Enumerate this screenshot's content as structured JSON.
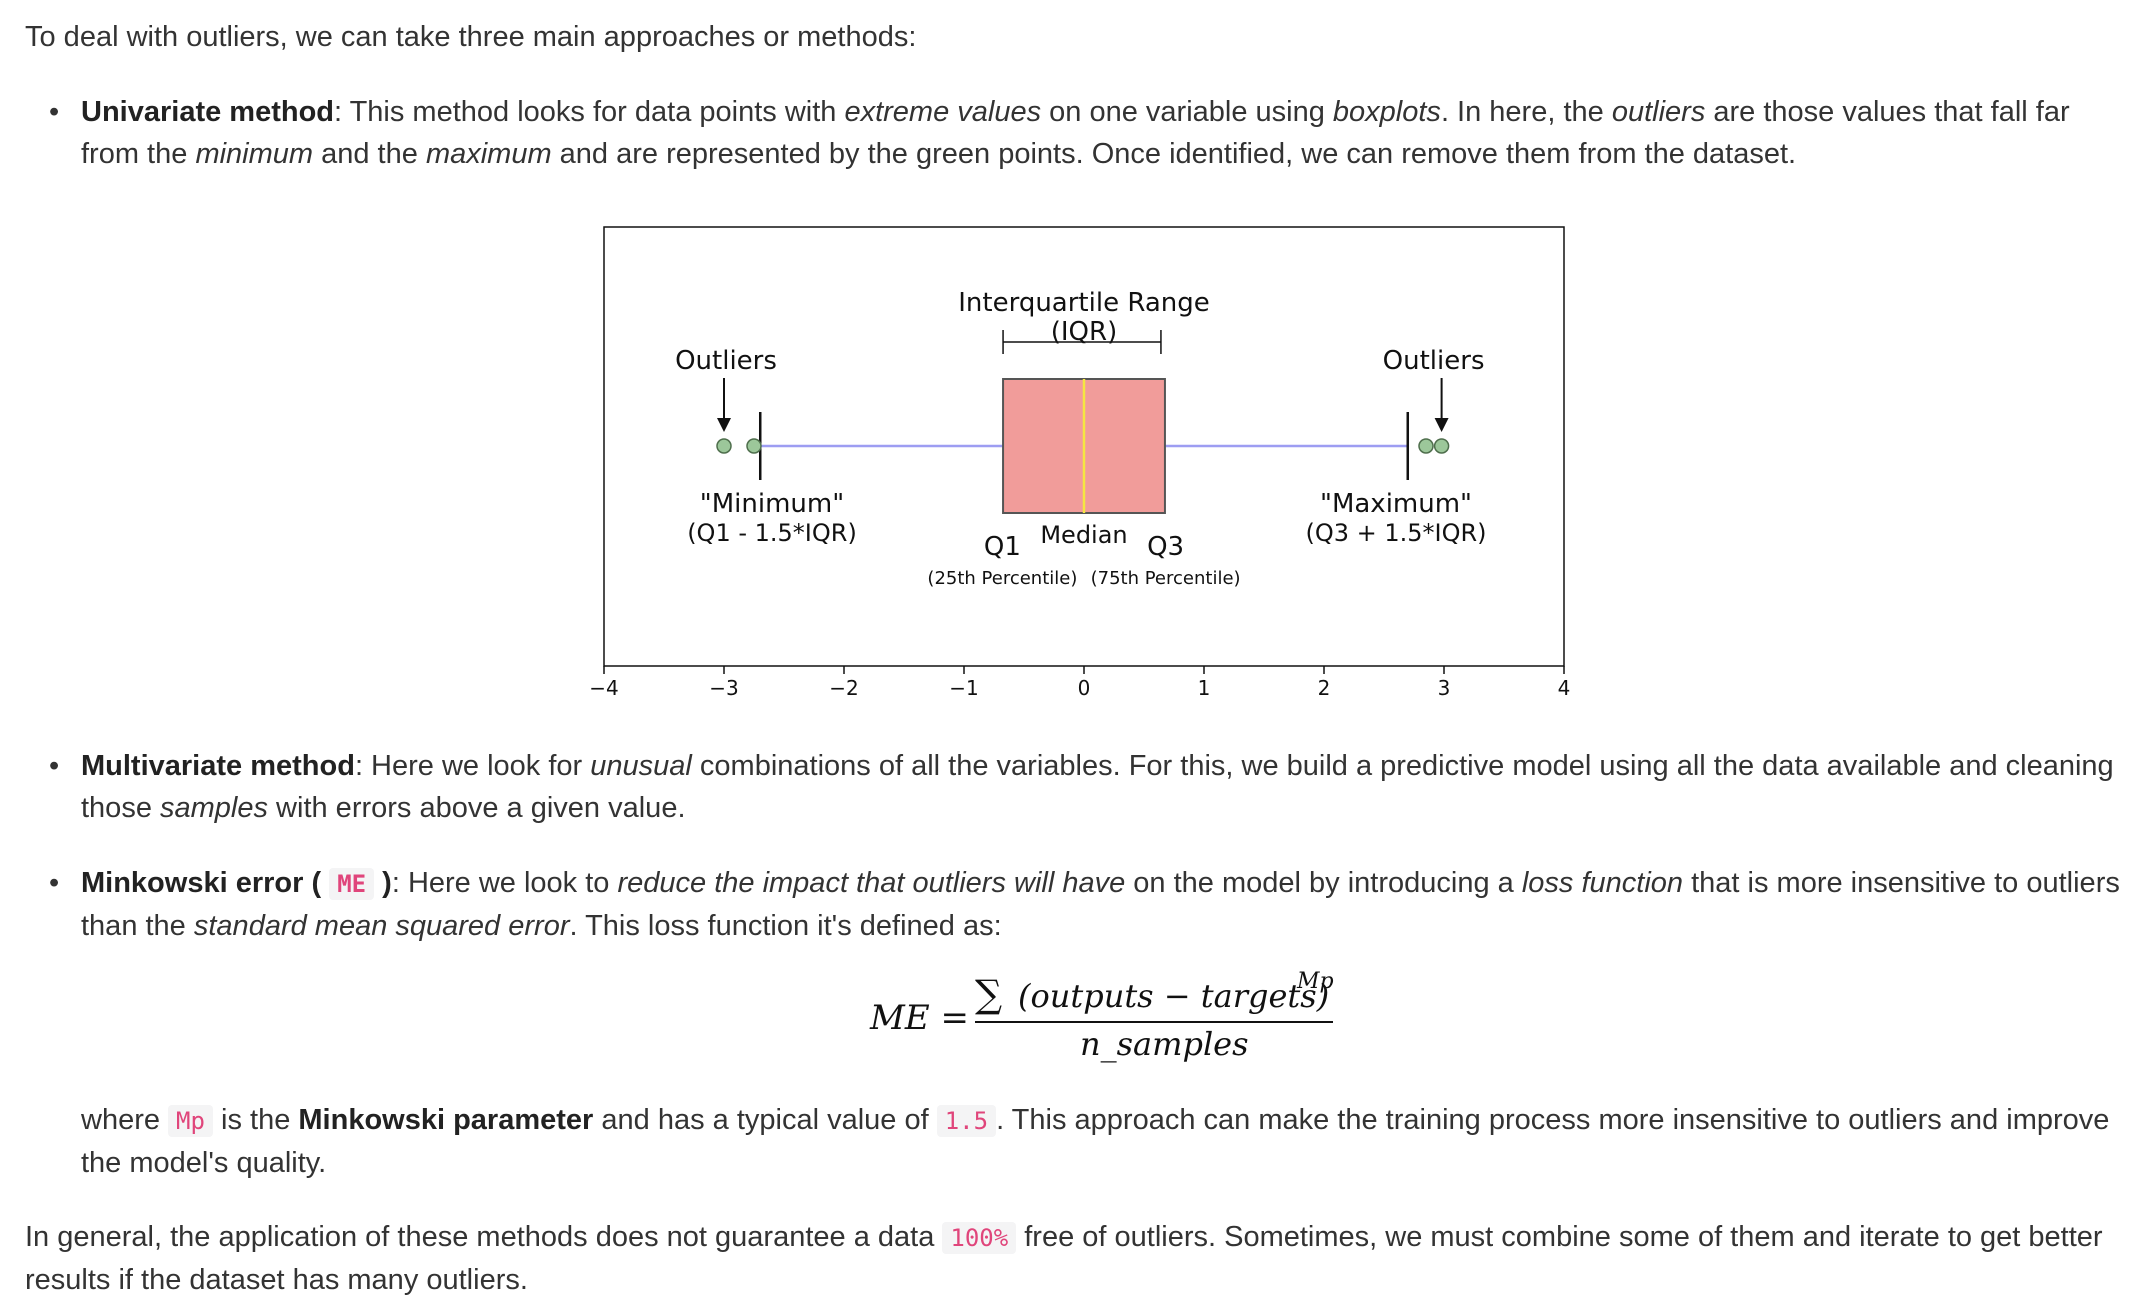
{
  "intro": "To deal with outliers, we can take three main approaches or methods:",
  "univariate": {
    "term": "Univariate method",
    "t1": ": This method looks for data points with ",
    "e1": "extreme values",
    "t2": " on one variable using ",
    "e2": "boxplots",
    "t3": ". In here, the ",
    "e3": "outliers",
    "t4": " are those values that fall far from the ",
    "e4": "minimum",
    "t5": " and the ",
    "e5": "maximum",
    "t6": " and are represented by the green points. Once identified, we can remove them from the dataset."
  },
  "chart_data": {
    "type": "boxplot",
    "xlim": [
      -4,
      4
    ],
    "x_ticks": [
      "−4",
      "−3",
      "−2",
      "−1",
      "0",
      "1",
      "2",
      "3",
      "4"
    ],
    "box": {
      "q1": -0.6745,
      "median": 0,
      "q3": 0.6745,
      "whisker_low": -2.698,
      "whisker_high": 2.698
    },
    "outliers": [
      -3.0,
      -2.75,
      2.85,
      2.98
    ],
    "colors": {
      "box": "#f19c9a",
      "median": "#f5e642",
      "whisker": "#9d9df2",
      "outlier": "#9cc79a"
    },
    "annotations": {
      "iqr_line1": "Interquartile Range",
      "iqr_line2": "(IQR)",
      "outliers_left": "Outliers",
      "outliers_right": "Outliers",
      "min_line1": "\"Minimum\"",
      "min_line2": "(Q1 - 1.5*IQR)",
      "max_line1": "\"Maximum\"",
      "max_line2": "(Q3 + 1.5*IQR)",
      "q1": "Q1",
      "q3": "Q3",
      "median": "Median",
      "q1_sub": "(25th Percentile)",
      "q3_sub": "(75th Percentile)"
    }
  },
  "multivariate": {
    "term": "Multivariate method",
    "t1": ": Here we look for ",
    "e1": "unusual",
    "t2": " combinations of all the variables. For this, we build a predictive model using all the data available and cleaning those ",
    "e2": "samples",
    "t3": " with errors above a given value."
  },
  "minkowski": {
    "term": "Minkowski error (",
    "code": "ME",
    "term_close": ")",
    "t1": ": Here we look to ",
    "e1": "reduce the impact that outliers will have",
    "t2": " on the model by introducing a ",
    "e2": "loss function",
    "t3": " that is more insensitive to outliers than the ",
    "e3": "standard mean squared error",
    "t4": ". This loss function it's defined as:"
  },
  "formula": {
    "lhs": "ME =",
    "sigma": "∑",
    "numerator": "(outputs − targets)",
    "exponent": "Mp",
    "denominator": "n_samples"
  },
  "where": {
    "t1": "where ",
    "code1": "Mp",
    "t2": " is the ",
    "bold": "Minkowski parameter",
    "t3": " and has a typical value of ",
    "code2": "1.5",
    "t4": ". This approach can make the training process more insensitive to outliers and improve the model's quality."
  },
  "conclusion": {
    "t1": "In general, the application of these methods does not guarantee a data ",
    "code": "100%",
    "t2": " free of outliers. Sometimes, we must combine some of them and iterate to get better results if the dataset has many outliers."
  }
}
